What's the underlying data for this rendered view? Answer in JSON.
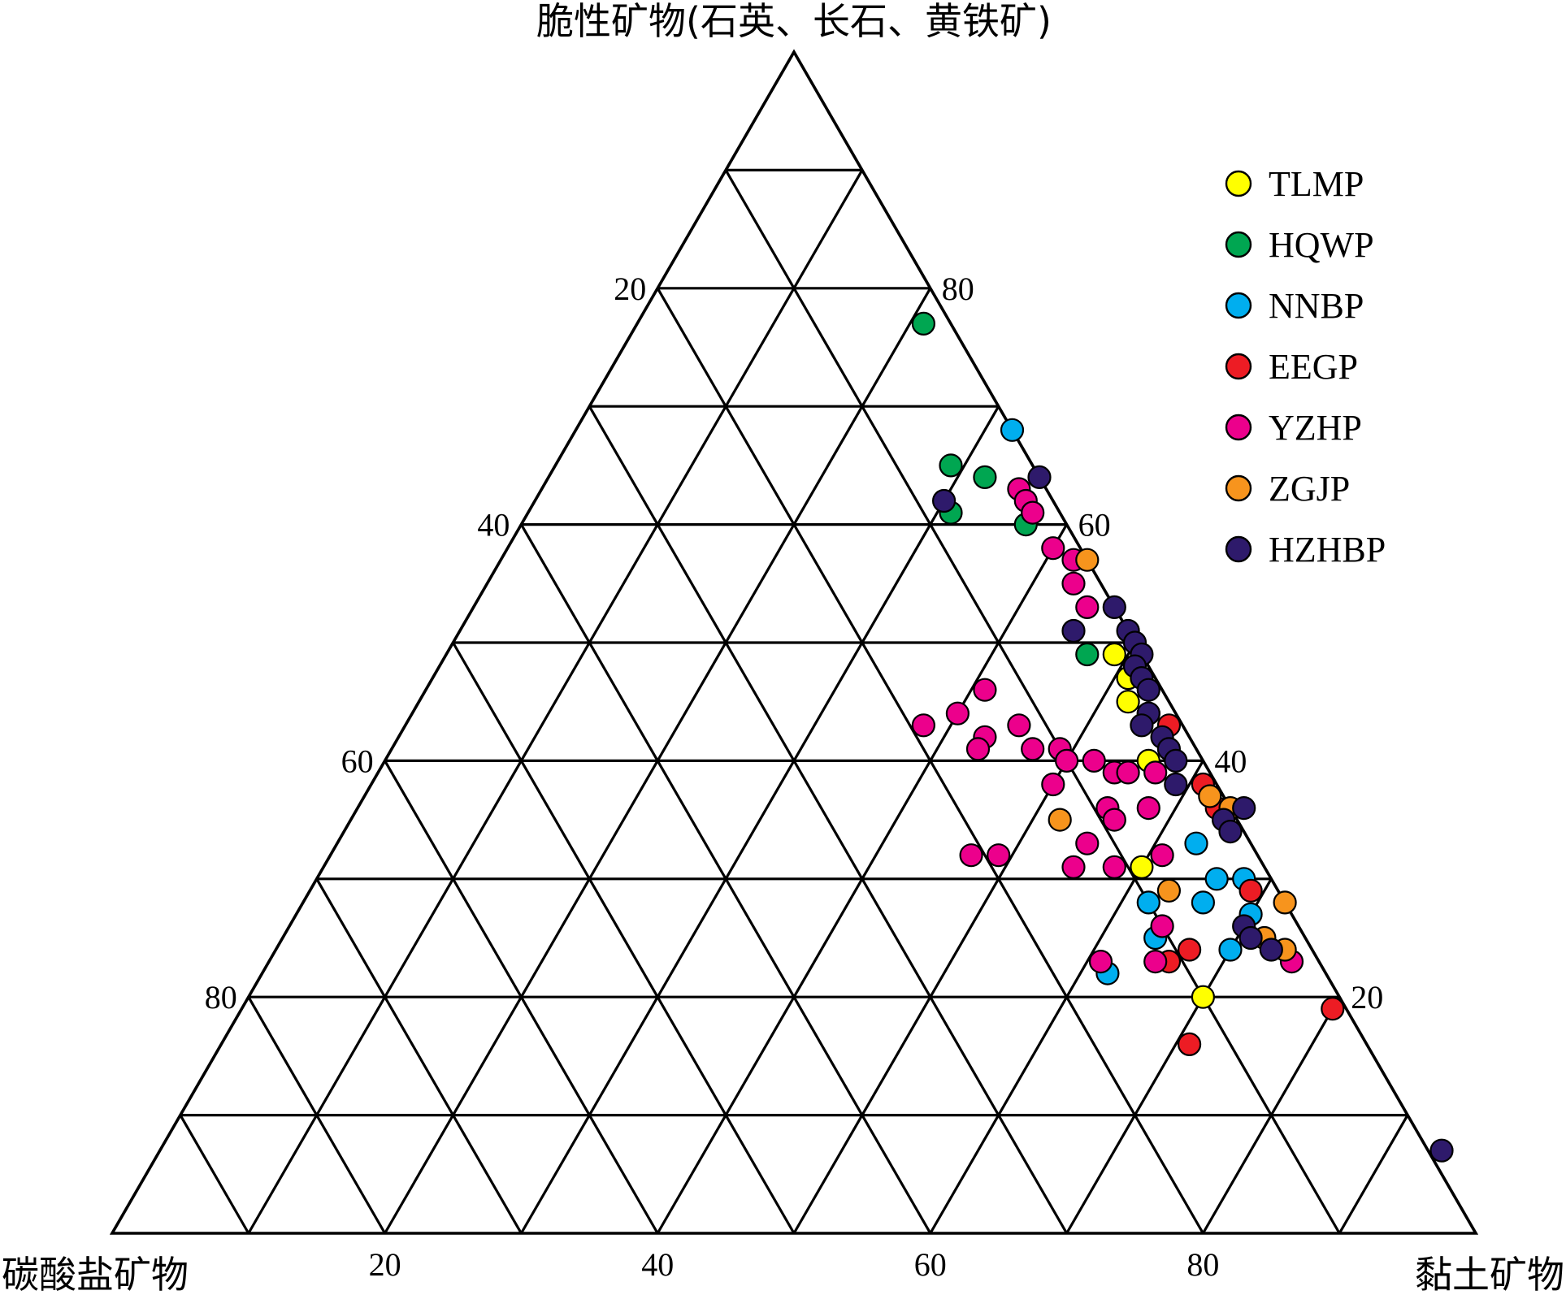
{
  "chart_data": {
    "type": "ternary-scatter",
    "axes": {
      "top": {
        "label": "脆性矿物(石英、长石、黄铁矿)"
      },
      "left": {
        "label": "碳酸盐矿物"
      },
      "right": {
        "label": "黏土矿物"
      }
    },
    "ticks": {
      "top_scale_left_edge": [
        "20",
        "40",
        "60",
        "80"
      ],
      "top_scale_right_edge": [
        "80",
        "60",
        "40",
        "20"
      ],
      "bottom_edge": [
        "20",
        "40",
        "60",
        "80"
      ]
    },
    "grid": true,
    "legend_position": "top-right",
    "series": [
      {
        "name": "TLMP",
        "color": "#ffff00",
        "points": [
          {
            "brittle": 49,
            "clay": 49
          },
          {
            "brittle": 47,
            "clay": 51
          },
          {
            "brittle": 47,
            "clay": 51
          },
          {
            "brittle": 45,
            "clay": 52
          },
          {
            "brittle": 44,
            "clay": 54
          },
          {
            "brittle": 40,
            "clay": 56
          },
          {
            "brittle": 31,
            "clay": 60
          },
          {
            "brittle": 20,
            "clay": 70
          }
        ]
      },
      {
        "name": "HQWP",
        "color": "#00a651",
        "points": [
          {
            "brittle": 77,
            "clay": 21
          },
          {
            "brittle": 65,
            "clay": 29
          },
          {
            "brittle": 64,
            "clay": 32
          },
          {
            "brittle": 61,
            "clay": 31
          },
          {
            "brittle": 60,
            "clay": 37
          },
          {
            "brittle": 49,
            "clay": 47
          }
        ]
      },
      {
        "name": "NNBP",
        "color": "#00aeef",
        "points": [
          {
            "brittle": 68,
            "clay": 32
          },
          {
            "brittle": 33,
            "clay": 63
          },
          {
            "brittle": 30,
            "clay": 66
          },
          {
            "brittle": 28,
            "clay": 66
          },
          {
            "brittle": 30,
            "clay": 68
          },
          {
            "brittle": 28,
            "clay": 62
          },
          {
            "brittle": 25,
            "clay": 64
          },
          {
            "brittle": 24,
            "clay": 70
          },
          {
            "brittle": 22,
            "clay": 62
          },
          {
            "brittle": 27,
            "clay": 70
          }
        ]
      },
      {
        "name": "EEGP",
        "color": "#ed1c24",
        "points": [
          {
            "brittle": 43,
            "clay": 56
          },
          {
            "brittle": 38,
            "clay": 61
          },
          {
            "brittle": 36,
            "clay": 63
          },
          {
            "brittle": 29,
            "clay": 69
          },
          {
            "brittle": 24,
            "clay": 67
          },
          {
            "brittle": 23,
            "clay": 66
          },
          {
            "brittle": 19,
            "clay": 80
          },
          {
            "brittle": 16,
            "clay": 71
          }
        ]
      },
      {
        "name": "YZHP",
        "color": "#ec008c",
        "points": [
          {
            "brittle": 63,
            "clay": 35
          },
          {
            "brittle": 62,
            "clay": 36
          },
          {
            "brittle": 61,
            "clay": 37
          },
          {
            "brittle": 58,
            "clay": 40
          },
          {
            "brittle": 57,
            "clay": 42
          },
          {
            "brittle": 55,
            "clay": 43
          },
          {
            "brittle": 53,
            "clay": 45
          },
          {
            "brittle": 46,
            "clay": 41
          },
          {
            "brittle": 44,
            "clay": 40
          },
          {
            "brittle": 43,
            "clay": 38
          },
          {
            "brittle": 43,
            "clay": 45
          },
          {
            "brittle": 42,
            "clay": 43
          },
          {
            "brittle": 41,
            "clay": 43
          },
          {
            "brittle": 41,
            "clay": 47
          },
          {
            "brittle": 41,
            "clay": 49
          },
          {
            "brittle": 40,
            "clay": 50
          },
          {
            "brittle": 40,
            "clay": 52
          },
          {
            "brittle": 39,
            "clay": 54
          },
          {
            "brittle": 39,
            "clay": 55
          },
          {
            "brittle": 39,
            "clay": 57
          },
          {
            "brittle": 38,
            "clay": 50
          },
          {
            "brittle": 36,
            "clay": 55
          },
          {
            "brittle": 36,
            "clay": 58
          },
          {
            "brittle": 35,
            "clay": 56
          },
          {
            "brittle": 33,
            "clay": 55
          },
          {
            "brittle": 32,
            "clay": 47
          },
          {
            "brittle": 32,
            "clay": 49
          },
          {
            "brittle": 31,
            "clay": 55
          },
          {
            "brittle": 31,
            "clay": 58
          },
          {
            "brittle": 32,
            "clay": 61
          },
          {
            "brittle": 26,
            "clay": 64
          },
          {
            "brittle": 23,
            "clay": 61
          },
          {
            "brittle": 23,
            "clay": 65
          },
          {
            "brittle": 23,
            "clay": 75
          }
        ]
      },
      {
        "name": "ZGJP",
        "color": "#f7941d",
        "points": [
          {
            "brittle": 57,
            "clay": 43
          },
          {
            "brittle": 37,
            "clay": 62
          },
          {
            "brittle": 36,
            "clay": 64
          },
          {
            "brittle": 35,
            "clay": 52
          },
          {
            "brittle": 29,
            "clay": 63
          },
          {
            "brittle": 28,
            "clay": 72
          },
          {
            "brittle": 25,
            "clay": 72
          },
          {
            "brittle": 24,
            "clay": 74
          }
        ]
      },
      {
        "name": "HZHBP",
        "color": "#2e1a6b",
        "points": [
          {
            "brittle": 64,
            "clay": 36
          },
          {
            "brittle": 62,
            "clay": 30
          },
          {
            "brittle": 53,
            "clay": 47
          },
          {
            "brittle": 51,
            "clay": 49
          },
          {
            "brittle": 51,
            "clay": 45
          },
          {
            "brittle": 50,
            "clay": 50
          },
          {
            "brittle": 49,
            "clay": 51
          },
          {
            "brittle": 48,
            "clay": 51
          },
          {
            "brittle": 47,
            "clay": 52
          },
          {
            "brittle": 46,
            "clay": 53
          },
          {
            "brittle": 44,
            "clay": 54
          },
          {
            "brittle": 43,
            "clay": 54
          },
          {
            "brittle": 42,
            "clay": 56
          },
          {
            "brittle": 41,
            "clay": 57
          },
          {
            "brittle": 40,
            "clay": 58
          },
          {
            "brittle": 38,
            "clay": 59
          },
          {
            "brittle": 36,
            "clay": 65
          },
          {
            "brittle": 35,
            "clay": 64
          },
          {
            "brittle": 34,
            "clay": 65
          },
          {
            "brittle": 26,
            "clay": 70
          },
          {
            "brittle": 25,
            "clay": 71
          },
          {
            "brittle": 24,
            "clay": 73
          },
          {
            "brittle": 7,
            "clay": 94
          }
        ]
      }
    ]
  }
}
